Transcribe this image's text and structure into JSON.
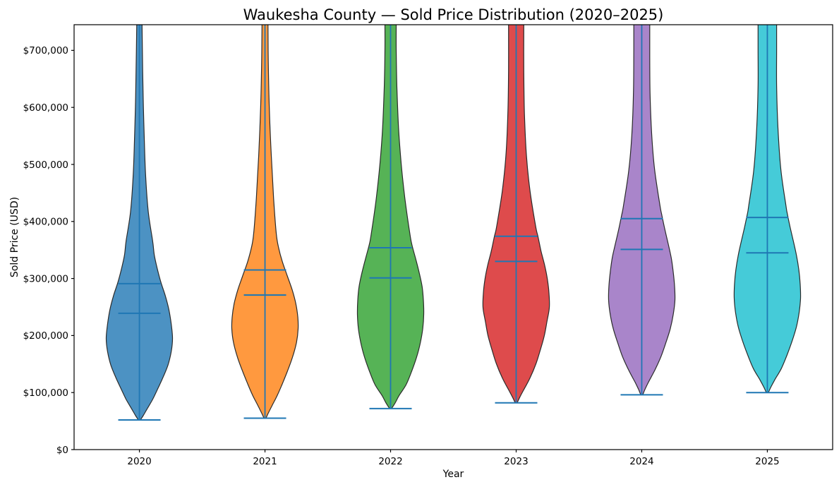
{
  "chart_data": {
    "type": "violin",
    "title": "Waukesha County — Sold Price Distribution (2020–2025)",
    "xlabel": "Year",
    "ylabel": "Sold Price (USD)",
    "categories": [
      "2020",
      "2021",
      "2022",
      "2023",
      "2024",
      "2025"
    ],
    "ylim": [
      0,
      745000
    ],
    "grid": false,
    "legend": "none",
    "yticks": [
      {
        "value": 0,
        "label": "$0"
      },
      {
        "value": 100000,
        "label": "$100,000"
      },
      {
        "value": 200000,
        "label": "$200,000"
      },
      {
        "value": 300000,
        "label": "$300,000"
      },
      {
        "value": 400000,
        "label": "$400,000"
      },
      {
        "value": 500000,
        "label": "$500,000"
      },
      {
        "value": 600000,
        "label": "$600,000"
      },
      {
        "value": 700000,
        "label": "$700,000"
      }
    ],
    "style": {
      "background": "#ffffff",
      "text_color": "#000000",
      "axes_color": "#000000",
      "stat_line_color": "#1f77b4",
      "violin_edge_color": "#2b2b2b"
    },
    "series": [
      {
        "label": "2020",
        "fill": "#4C92C3",
        "min": 52000,
        "median": 239000,
        "mean": 291000,
        "max_clipped": true,
        "profile": [
          [
            52000,
            0.03
          ],
          [
            60000,
            0.12
          ],
          [
            72000,
            0.24
          ],
          [
            88000,
            0.4
          ],
          [
            105000,
            0.54
          ],
          [
            125000,
            0.7
          ],
          [
            148000,
            0.86
          ],
          [
            172000,
            0.96
          ],
          [
            195000,
            1.0
          ],
          [
            220000,
            0.96
          ],
          [
            245000,
            0.89
          ],
          [
            270000,
            0.78
          ],
          [
            293000,
            0.65
          ],
          [
            317000,
            0.54
          ],
          [
            341000,
            0.45
          ],
          [
            366000,
            0.4
          ],
          [
            416000,
            0.27
          ],
          [
            478000,
            0.19
          ],
          [
            540000,
            0.15
          ],
          [
            601000,
            0.12
          ],
          [
            663000,
            0.1
          ],
          [
            745000,
            0.08
          ]
        ]
      },
      {
        "label": "2021",
        "fill": "#FF993F",
        "min": 55000,
        "median": 271000,
        "mean": 315000,
        "max_clipped": true,
        "profile": [
          [
            55000,
            0.03
          ],
          [
            64000,
            0.1
          ],
          [
            78000,
            0.22
          ],
          [
            95000,
            0.37
          ],
          [
            115000,
            0.52
          ],
          [
            138000,
            0.68
          ],
          [
            162000,
            0.83
          ],
          [
            188000,
            0.95
          ],
          [
            212000,
            1.0
          ],
          [
            232000,
            0.99
          ],
          [
            256000,
            0.93
          ],
          [
            280000,
            0.82
          ],
          [
            305000,
            0.67
          ],
          [
            330000,
            0.52
          ],
          [
            354000,
            0.41
          ],
          [
            379000,
            0.34
          ],
          [
            441000,
            0.26
          ],
          [
            515000,
            0.19
          ],
          [
            601000,
            0.13
          ],
          [
            680000,
            0.1
          ],
          [
            745000,
            0.09
          ]
        ]
      },
      {
        "label": "2022",
        "fill": "#56B356",
        "min": 72000,
        "median": 301000,
        "mean": 354000,
        "max_clipped": true,
        "profile": [
          [
            72000,
            0.03
          ],
          [
            82000,
            0.14
          ],
          [
            95000,
            0.26
          ],
          [
            114000,
            0.47
          ],
          [
            138000,
            0.64
          ],
          [
            163000,
            0.79
          ],
          [
            188000,
            0.9
          ],
          [
            212000,
            0.97
          ],
          [
            237000,
            1.0
          ],
          [
            262000,
            0.99
          ],
          [
            286000,
            0.95
          ],
          [
            311000,
            0.86
          ],
          [
            336000,
            0.75
          ],
          [
            360000,
            0.64
          ],
          [
            379000,
            0.58
          ],
          [
            441000,
            0.43
          ],
          [
            502000,
            0.32
          ],
          [
            564000,
            0.24
          ],
          [
            638000,
            0.19
          ],
          [
            700000,
            0.17
          ],
          [
            745000,
            0.17
          ]
        ]
      },
      {
        "label": "2023",
        "fill": "#DE4B4C",
        "min": 82000,
        "median": 330000,
        "mean": 374000,
        "max_clipped": true,
        "profile": [
          [
            82000,
            0.03
          ],
          [
            92000,
            0.11
          ],
          [
            104000,
            0.22
          ],
          [
            126000,
            0.42
          ],
          [
            151000,
            0.6
          ],
          [
            175000,
            0.73
          ],
          [
            200000,
            0.85
          ],
          [
            225000,
            0.93
          ],
          [
            249000,
            1.0
          ],
          [
            274000,
            0.99
          ],
          [
            299000,
            0.94
          ],
          [
            323000,
            0.86
          ],
          [
            348000,
            0.75
          ],
          [
            373000,
            0.66
          ],
          [
            391000,
            0.59
          ],
          [
            453000,
            0.42
          ],
          [
            515000,
            0.31
          ],
          [
            589000,
            0.25
          ],
          [
            663000,
            0.23
          ],
          [
            745000,
            0.23
          ]
        ]
      },
      {
        "label": "2024",
        "fill": "#A985CA",
        "min": 96000,
        "median": 351000,
        "mean": 405000,
        "max_clipped": true,
        "profile": [
          [
            96000,
            0.03
          ],
          [
            106000,
            0.1
          ],
          [
            118000,
            0.2
          ],
          [
            140000,
            0.4
          ],
          [
            163000,
            0.58
          ],
          [
            188000,
            0.73
          ],
          [
            212000,
            0.86
          ],
          [
            237000,
            0.95
          ],
          [
            262000,
            1.0
          ],
          [
            286000,
            0.99
          ],
          [
            311000,
            0.95
          ],
          [
            336000,
            0.89
          ],
          [
            360000,
            0.8
          ],
          [
            385000,
            0.7
          ],
          [
            410000,
            0.61
          ],
          [
            428000,
            0.55
          ],
          [
            490000,
            0.39
          ],
          [
            552000,
            0.3
          ],
          [
            626000,
            0.25
          ],
          [
            700000,
            0.24
          ],
          [
            745000,
            0.24
          ]
        ]
      },
      {
        "label": "2025",
        "fill": "#45CBD8",
        "min": 100000,
        "median": 345000,
        "mean": 407000,
        "max_clipped": true,
        "profile": [
          [
            100000,
            0.03
          ],
          [
            110000,
            0.11
          ],
          [
            122000,
            0.22
          ],
          [
            142000,
            0.42
          ],
          [
            167000,
            0.6
          ],
          [
            191000,
            0.75
          ],
          [
            216000,
            0.88
          ],
          [
            241000,
            0.96
          ],
          [
            265000,
            1.0
          ],
          [
            290000,
            0.99
          ],
          [
            315000,
            0.95
          ],
          [
            340000,
            0.88
          ],
          [
            364000,
            0.79
          ],
          [
            389000,
            0.69
          ],
          [
            414000,
            0.6
          ],
          [
            428000,
            0.56
          ],
          [
            490000,
            0.41
          ],
          [
            564000,
            0.32
          ],
          [
            638000,
            0.28
          ],
          [
            700000,
            0.28
          ],
          [
            745000,
            0.28
          ]
        ]
      }
    ]
  }
}
